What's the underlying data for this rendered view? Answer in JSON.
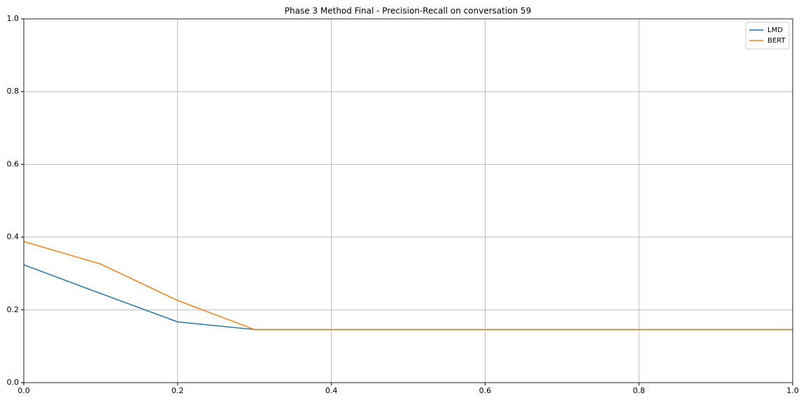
{
  "chart_data": {
    "type": "line",
    "title": "Phase 3 Method Final - Precision-Recall on conversation 59",
    "x": [
      0,
      0.1,
      0.2,
      0.3,
      0.4,
      0.5,
      0.6,
      0.7,
      0.8,
      0.9,
      1
    ],
    "series": [
      {
        "name": "LMD",
        "color": "#1f77b4",
        "values": [
          0.324,
          0.245,
          0.167,
          0.146,
          0.146,
          0.146,
          0.146,
          0.146,
          0.146,
          0.146,
          0.146
        ]
      },
      {
        "name": "BERT",
        "color": "#ff7f0e",
        "values": [
          0.388,
          0.326,
          0.226,
          0.146,
          0.146,
          0.146,
          0.146,
          0.146,
          0.146,
          0.146,
          0.146
        ]
      }
    ],
    "xlim": [
      0,
      1
    ],
    "ylim": [
      0,
      1
    ],
    "xticks": [
      {
        "value": 0,
        "label": "0.0"
      },
      0.2,
      0.4,
      0.6,
      0.8,
      {
        "value": 1,
        "label": "1.0"
      }
    ],
    "yticks": [
      {
        "value": 0,
        "label": "0.0"
      },
      0.2,
      0.4,
      0.6,
      0.8,
      {
        "value": 1,
        "label": "1.0"
      }
    ],
    "grid": true,
    "legend": "upper-right"
  }
}
